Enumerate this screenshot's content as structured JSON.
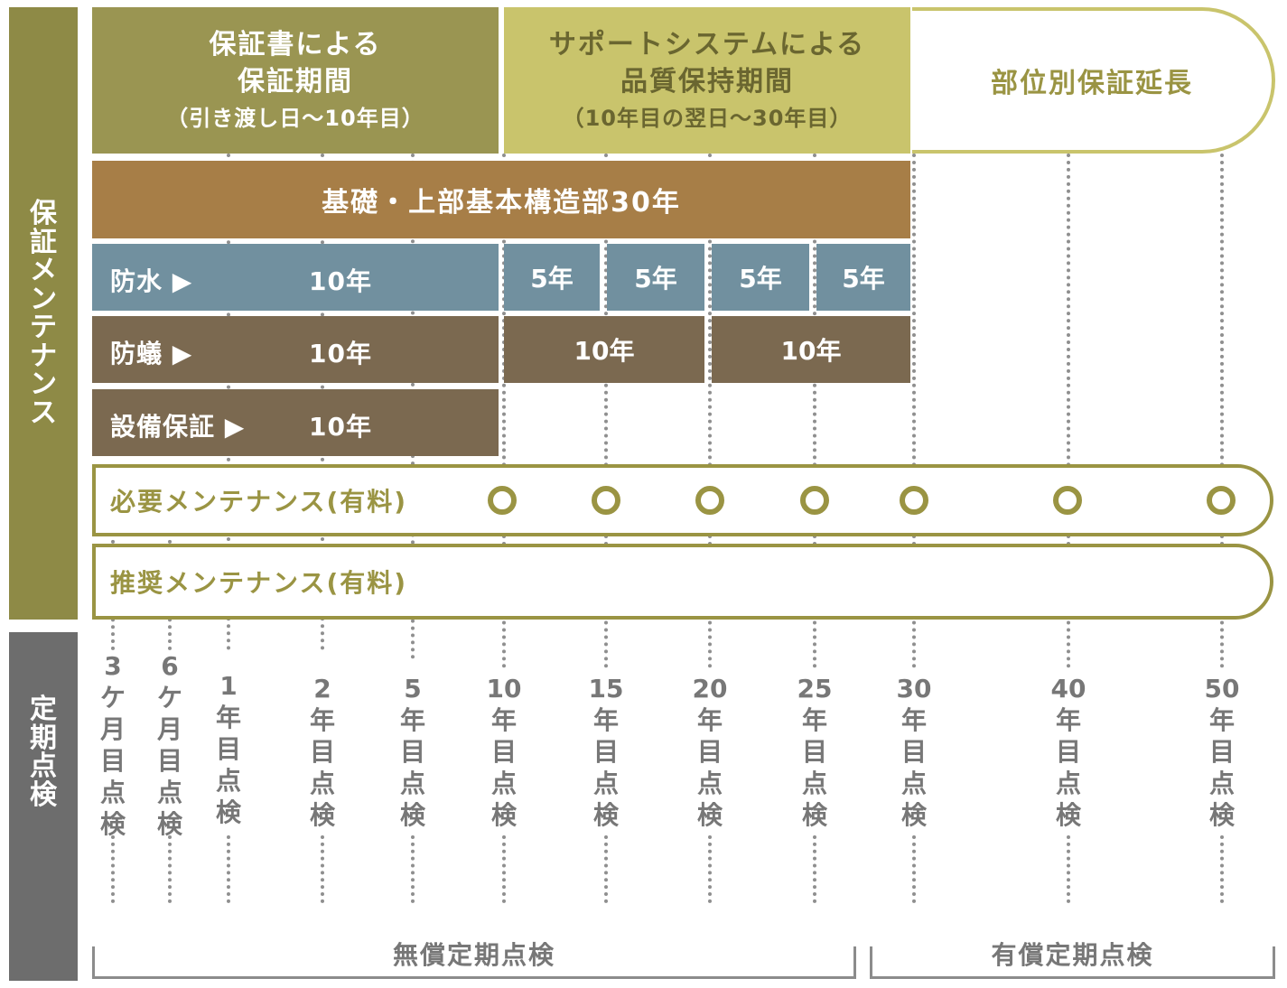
{
  "side_labels": {
    "warranty_maintenance": [
      "保",
      "証",
      "メ",
      "ン",
      "テ",
      "ナ",
      "ン",
      "ス"
    ],
    "periodic_inspection": [
      "定",
      "期",
      "点",
      "検"
    ]
  },
  "headers": {
    "warranty_book": {
      "title_line1": "保証書による",
      "title_line2": "保証期間",
      "sub": "（引き渡し日〜10年目）"
    },
    "support_system": {
      "title_line1": "サポートシステムによる",
      "title_line2": "品質保持期間",
      "sub": "（10年目の翌日〜30年目）"
    },
    "extension": {
      "title": "部位別保証延長"
    }
  },
  "rows": {
    "structure": "基礎・上部基本構造部30年",
    "waterproof": {
      "label": "防水 ▶",
      "first": "10年",
      "segments": [
        "5年",
        "5年",
        "5年",
        "5年"
      ]
    },
    "termite": {
      "label": "防蟻 ▶",
      "first": "10年",
      "segments": [
        "10年",
        "10年"
      ]
    },
    "equipment": {
      "label": "設備保証 ▶",
      "first": "10年"
    }
  },
  "maintenance": {
    "required": "必要メンテナンス(有料)",
    "recommended": "推奨メンテナンス(有料)"
  },
  "inspections": [
    [
      "3",
      "ケ",
      "月",
      "目",
      "点",
      "検"
    ],
    [
      "6",
      "ケ",
      "月",
      "目",
      "点",
      "検"
    ],
    [
      "1",
      "年",
      "目",
      "点",
      "検"
    ],
    [
      "2",
      "年",
      "目",
      "点",
      "検"
    ],
    [
      "5",
      "年",
      "目",
      "点",
      "検"
    ],
    [
      "10",
      "年",
      "目",
      "点",
      "検"
    ],
    [
      "15",
      "年",
      "目",
      "点",
      "検"
    ],
    [
      "20",
      "年",
      "目",
      "点",
      "検"
    ],
    [
      "25",
      "年",
      "目",
      "点",
      "検"
    ],
    [
      "30",
      "年",
      "目",
      "点",
      "検"
    ],
    [
      "40",
      "年",
      "目",
      "点",
      "検"
    ],
    [
      "50",
      "年",
      "目",
      "点",
      "検"
    ]
  ],
  "brackets": {
    "free": "無償定期点検",
    "paid": "有償定期点検"
  },
  "colors": {
    "olive_dark": "#9a9552",
    "olive_light": "#c9c46c",
    "brown_orange": "#a77e47",
    "steel_blue": "#71909f",
    "brown_gray": "#7b6950",
    "sidebar_olive": "#8e8a46",
    "sidebar_gray": "#6d6d6d",
    "accent": "#9a9443"
  }
}
